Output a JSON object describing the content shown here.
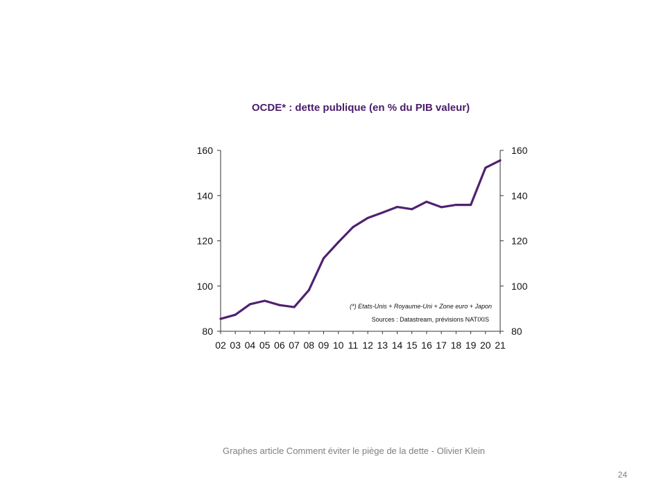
{
  "slide": {
    "caption": "Graphes article Comment  éviter le piège de la dette - Olivier Klein",
    "page_number": "24"
  },
  "chart_data": {
    "type": "line",
    "title": "OCDE* : dette publique (en % du PIB valeur)",
    "xlabel": "",
    "ylabel": "",
    "categories": [
      "02",
      "03",
      "04",
      "05",
      "06",
      "07",
      "08",
      "09",
      "10",
      "11",
      "12",
      "13",
      "14",
      "15",
      "16",
      "17",
      "18",
      "19",
      "20",
      "21"
    ],
    "series": [
      {
        "values": [
          85.5,
          87.3,
          92.0,
          93.5,
          91.6,
          90.7,
          98.2,
          112.3,
          119.4,
          126.1,
          130.1,
          132.5,
          135.0,
          134.0,
          137.3,
          134.9,
          135.9,
          135.9,
          152.3,
          155.6
        ]
      }
    ],
    "ylim": [
      80,
      160
    ],
    "yticks": [
      80,
      100,
      120,
      140,
      160
    ],
    "secondary_axis": true,
    "grid": false,
    "line_color": "#4f2170",
    "annotations": [
      "(*) Etats-Unis + Royaume-Uni + Zone euro + Japon",
      "Sources  : Datastream,  prévisions NATIXIS"
    ]
  }
}
